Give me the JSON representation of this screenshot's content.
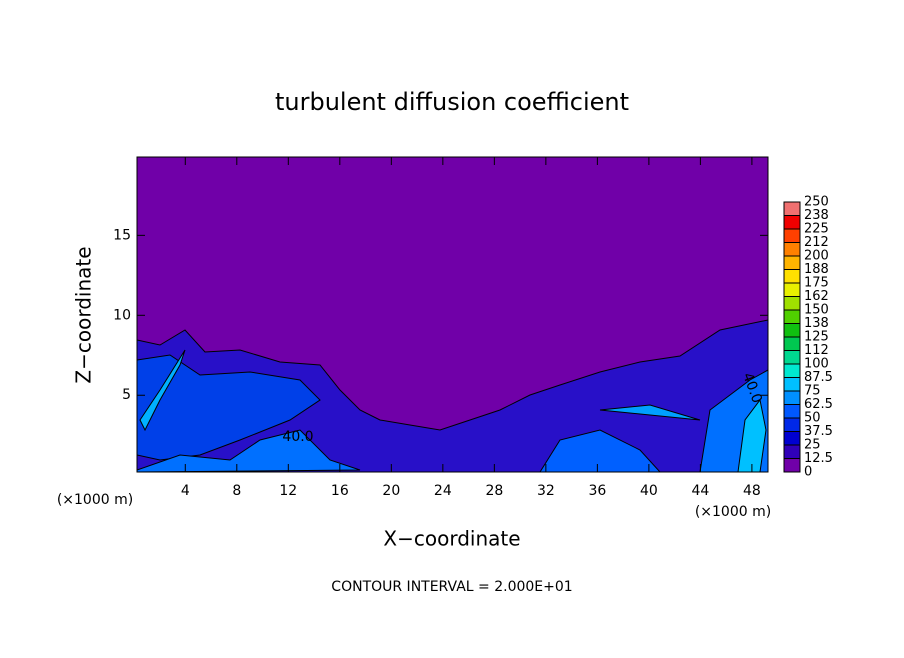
{
  "chart_data": {
    "type": "contour",
    "title": "turbulent diffusion coefficient",
    "xlabel": "X−coordinate",
    "ylabel": "Z−coordinate",
    "x_unit_labels": [
      "(×1000 m)",
      "(×1000 m)"
    ],
    "footnote": "CONTOUR INTERVAL = 2.000E+01",
    "contour_labels": [
      "40.0",
      "40.0"
    ],
    "xlim": [
      0.25,
      49.25
    ],
    "xticks": [
      4,
      8,
      12,
      16,
      20,
      24,
      28,
      32,
      36,
      40,
      44,
      48
    ],
    "ylim": [
      0.2,
      19.9
    ],
    "yticks": [
      5,
      10,
      15
    ],
    "colorbar": {
      "lim": [
        0,
        250
      ],
      "ticks": [
        0,
        12.5,
        25,
        37.5,
        50,
        62.5,
        75,
        87.5,
        100,
        {
          "value": 112.5,
          "label": "112"
        },
        125,
        {
          "value": 137.5,
          "label": "138"
        },
        150,
        {
          "value": 162.5,
          "label": "162"
        },
        175,
        {
          "value": 187.5,
          "label": "188"
        },
        200,
        {
          "value": 212.5,
          "label": "212"
        },
        225,
        {
          "value": 237.5,
          "label": "238"
        },
        250
      ],
      "colors": [
        "#7000a8",
        "#3000b8",
        "#0000d0",
        "#0028e8",
        "#0058ff",
        "#0090ff",
        "#00c0ff",
        "#00e8d0",
        "#00d890",
        "#00c850",
        "#10c010",
        "#50d000",
        "#a0e000",
        "#e8f000",
        "#ffe000",
        "#ffb400",
        "#ff8000",
        "#ff4000",
        "#f00000",
        "#f07070"
      ]
    }
  }
}
